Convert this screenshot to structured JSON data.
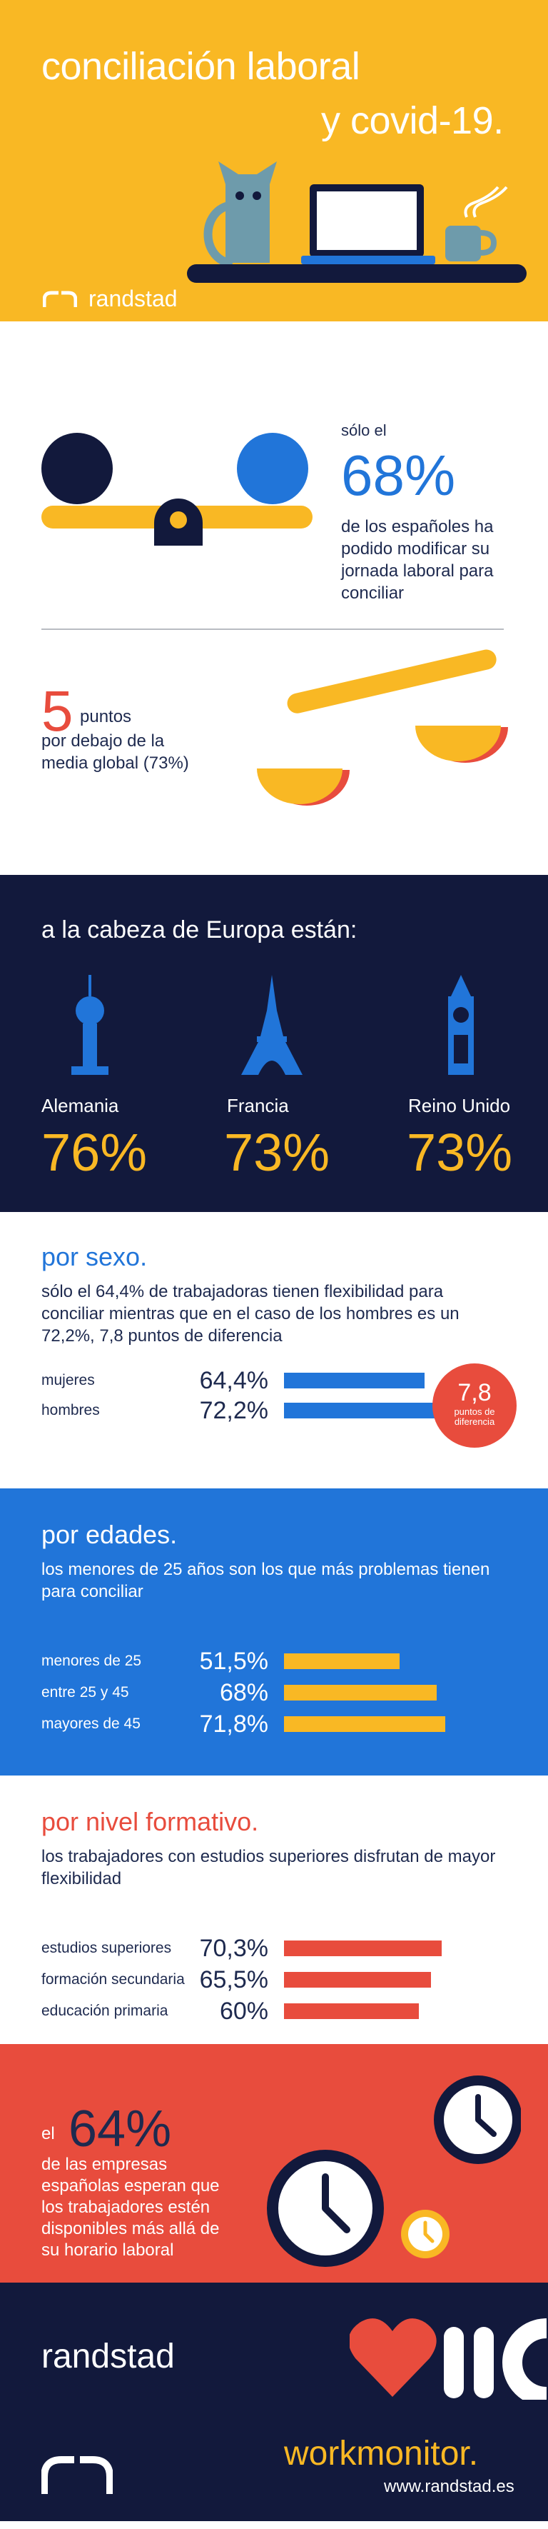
{
  "header": {
    "title_line1": "conciliación laboral",
    "title_line2": "y covid-19.",
    "brand": "randstad",
    "colors": {
      "yellow": "#f9b824",
      "navy": "#12193c",
      "blue": "#2175d9",
      "red": "#e84c3d"
    }
  },
  "stat68": {
    "lead": "sólo el",
    "value": "68%",
    "description": "de los españoles ha podido modificar su jornada laboral para conciliar"
  },
  "stat5": {
    "value": "5",
    "unit": "puntos",
    "description": "por debajo de la media global (73%)"
  },
  "europe": {
    "title": "a la cabeza de Europa están:",
    "countries": [
      {
        "name": "Alemania",
        "value": "76%",
        "icon": "berlin-tv-tower-icon"
      },
      {
        "name": "Francia",
        "value": "73%",
        "icon": "eiffel-tower-icon"
      },
      {
        "name": "Reino Unido",
        "value": "73%",
        "icon": "big-ben-icon"
      }
    ]
  },
  "sex": {
    "title": "por sexo.",
    "subtitle": "sólo el 64,4% de trabajadoras tienen flexibilidad para conciliar mientras que en el caso de los hombres es un 72,2%, 7,8 puntos de diferencia",
    "rows": [
      {
        "label": "mujeres",
        "value_text": "64,4%",
        "value": 64.4
      },
      {
        "label": "hombres",
        "value_text": "72,2%",
        "value": 72.2
      }
    ],
    "badge_value": "7,8",
    "badge_text": "puntos de diferencia"
  },
  "ages": {
    "title": "por edades.",
    "subtitle": "los menores de 25 años son los que más problemas tienen para conciliar",
    "rows": [
      {
        "label": "menores de 25",
        "value_text": "51,5%",
        "value": 51.5
      },
      {
        "label": "entre 25 y 45",
        "value_text": "68%",
        "value": 68
      },
      {
        "label": "mayores de 45",
        "value_text": "71,8%",
        "value": 71.8
      }
    ]
  },
  "education": {
    "title": "por nivel formativo.",
    "subtitle": "los trabajadores con estudios superiores disfrutan de mayor flexibilidad",
    "rows": [
      {
        "label": "estudios superiores",
        "value_text": "70,3%",
        "value": 70.3
      },
      {
        "label": "formación secundaria",
        "value_text": "65,5%",
        "value": 65.5
      },
      {
        "label": "educación primaria",
        "value_text": "60%",
        "value": 60
      }
    ]
  },
  "stat64": {
    "lead": "el",
    "value": "64%",
    "description": "de las empresas españolas esperan que los trabajadores estén disponibles más allá de su horario laboral"
  },
  "footer": {
    "brand": "randstad",
    "product": "workmonitor.",
    "url": "www.randstad.es"
  }
}
